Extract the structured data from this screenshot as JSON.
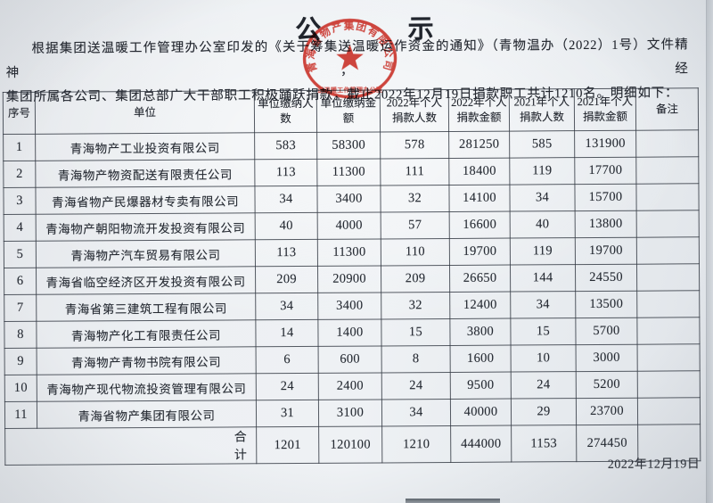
{
  "notice": {
    "title": "公 示",
    "body_line1": "根据集团送温暖工作管理办公室印发的《关于筹集送温暖运作资金的通知》（青物温办（2022）1号）文件精神，经",
    "body_line2": "集团所属各公司、集团总部广大干部职工积极踊跃捐款，截止2022年12月19日捐款职工共计1210名。明细如下：",
    "date": "2022年12月19日"
  },
  "seal": {
    "ring_text": "青海省物产集团有限公司",
    "bottom_text": "送温暖工作管理办公室",
    "color": "#c4362e"
  },
  "table": {
    "headers": [
      "序号",
      "单位",
      "单位缴纳人数",
      "单位缴纳金额",
      "2022年个人捐款人数",
      "2022年个人捐款金额",
      "2021年个人捐款人数",
      "2021年个人捐款金额",
      "备注"
    ],
    "rows": [
      [
        "1",
        "青海物产工业投资有限公司",
        "583",
        "58300",
        "578",
        "281250",
        "585",
        "131900",
        ""
      ],
      [
        "2",
        "青海物产物资配送有限责任公司",
        "113",
        "11300",
        "111",
        "18400",
        "119",
        "17700",
        ""
      ],
      [
        "3",
        "青海省物产民爆器材专卖有限公司",
        "34",
        "3400",
        "32",
        "14100",
        "34",
        "15700",
        ""
      ],
      [
        "4",
        "青海物产朝阳物流开发投资有限公司",
        "40",
        "4000",
        "57",
        "16600",
        "40",
        "13800",
        ""
      ],
      [
        "5",
        "青海物产汽车贸易有限公司",
        "113",
        "11300",
        "110",
        "19700",
        "119",
        "19700",
        ""
      ],
      [
        "6",
        "青海省临空经济区开发投资有限公司",
        "209",
        "20900",
        "209",
        "26650",
        "144",
        "24550",
        ""
      ],
      [
        "7",
        "青海省第三建筑工程有限公司",
        "34",
        "3400",
        "32",
        "12400",
        "34",
        "13500",
        ""
      ],
      [
        "8",
        "青海物产化工有限责任公司",
        "14",
        "1400",
        "15",
        "3800",
        "15",
        "5700",
        ""
      ],
      [
        "9",
        "青海物产青物书院有限公司",
        "6",
        "600",
        "8",
        "1600",
        "10",
        "3000",
        ""
      ],
      [
        "10",
        "青海物产现代物流投资管理有限公司",
        "24",
        "2400",
        "24",
        "9500",
        "24",
        "5200",
        ""
      ],
      [
        "11",
        "青海省物产集团有限公司",
        "31",
        "3100",
        "34",
        "40000",
        "29",
        "23700",
        ""
      ]
    ],
    "total": {
      "label": "合计",
      "values": [
        "1201",
        "120100",
        "1210",
        "444000",
        "1153",
        "274450",
        ""
      ]
    }
  }
}
